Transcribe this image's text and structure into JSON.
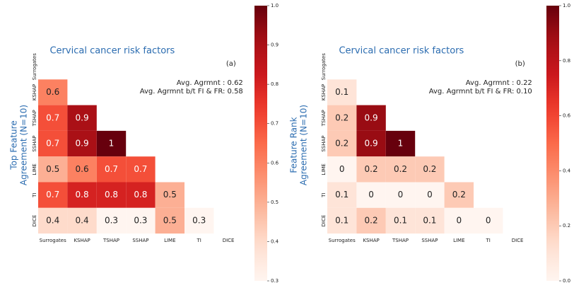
{
  "chart_data": [
    {
      "type": "heatmap",
      "title": "Cervical cancer risk factors",
      "panel_label": "(a)",
      "annotations": [
        "Avg. Agrmnt : 0.62",
        "Avg. Agrmnt b/t FI & FR: 0.58"
      ],
      "ylabel": [
        "Top Feature",
        "Agreement (N=10)"
      ],
      "x_categories": [
        "Surrogates",
        "KSHAP",
        "TSHAP",
        "SSHAP",
        "LIME",
        "TI",
        "DICE"
      ],
      "y_categories": [
        "Surrogates",
        "KSHAP",
        "TSHAP",
        "SSHAP",
        "LIME",
        "TI",
        "DICE"
      ],
      "values": [
        [
          null,
          null,
          null,
          null,
          null,
          null,
          null
        ],
        [
          0.6,
          null,
          null,
          null,
          null,
          null,
          null
        ],
        [
          0.7,
          0.9,
          null,
          null,
          null,
          null,
          null
        ],
        [
          0.7,
          0.9,
          1,
          null,
          null,
          null,
          null
        ],
        [
          0.5,
          0.6,
          0.7,
          0.7,
          null,
          null,
          null
        ],
        [
          0.7,
          0.8,
          0.8,
          0.8,
          0.5,
          null,
          null
        ],
        [
          0.4,
          0.4,
          0.3,
          0.3,
          0.5,
          0.3,
          null
        ]
      ],
      "colormap": "Reds",
      "clim": [
        0.3,
        1
      ],
      "cticks": [
        0.3,
        0.4,
        0.5,
        0.6,
        0.7,
        0.8,
        0.9,
        {
          "value": 1,
          "label": "1.0"
        }
      ]
    },
    {
      "type": "heatmap",
      "title": "Cervical cancer risk factors",
      "panel_label": "(b)",
      "annotations": [
        "Avg. Agrmnt : 0.22",
        "Avg. Agrmnt b/t FI & FR: 0.10"
      ],
      "ylabel": [
        "Feature Rank",
        "Agreement (N=10)"
      ],
      "x_categories": [
        "Surrogates",
        "KSHAP",
        "TSHAP",
        "SSHAP",
        "LIME",
        "TI",
        "DICE"
      ],
      "y_categories": [
        "Surrogates",
        "KSHAP",
        "TSHAP",
        "SSHAP",
        "LIME",
        "TI",
        "DICE"
      ],
      "values": [
        [
          null,
          null,
          null,
          null,
          null,
          null,
          null
        ],
        [
          0.1,
          null,
          null,
          null,
          null,
          null,
          null
        ],
        [
          0.2,
          0.9,
          null,
          null,
          null,
          null,
          null
        ],
        [
          0.2,
          0.9,
          1,
          null,
          null,
          null,
          null
        ],
        [
          0,
          0.2,
          0.2,
          0.2,
          null,
          null,
          null
        ],
        [
          0.1,
          0,
          0,
          0,
          0.2,
          null,
          null
        ],
        [
          0.1,
          0.2,
          0.1,
          0.1,
          0,
          0,
          null
        ]
      ],
      "colormap": "Reds",
      "clim": [
        0,
        1
      ],
      "cticks": [
        {
          "value": 0,
          "label": "0.0"
        },
        0.2,
        0.4,
        0.6,
        0.8,
        {
          "value": 1,
          "label": "1.0"
        }
      ]
    }
  ]
}
